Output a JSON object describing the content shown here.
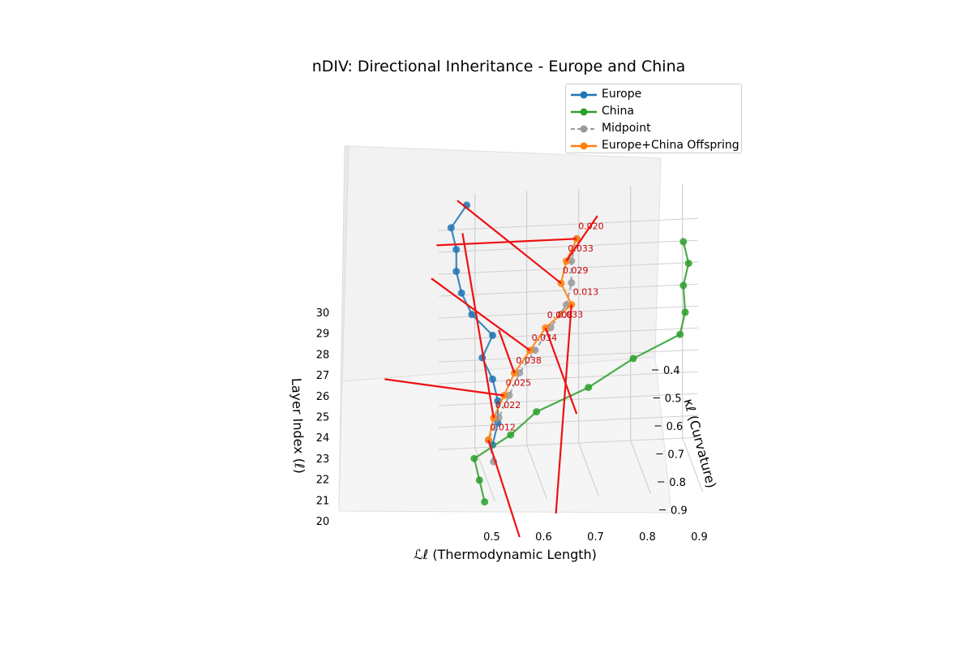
{
  "chart_data": {
    "type": "line",
    "title": "nDIV: Directional Inheritance - Europe and China",
    "xlabel": "ℒℓ (Thermodynamic Length)",
    "ylabel": "κℓ (Curvature)",
    "zlabel": "Layer Index (ℓ)",
    "xlim": [
      0.43,
      0.93
    ],
    "ylim": [
      0.35,
      0.9
    ],
    "zlim": [
      20,
      30
    ],
    "x_ticks": [
      "0.5",
      "0.6",
      "0.7",
      "0.8",
      "0.9"
    ],
    "y_ticks": [
      "0.4",
      "0.5",
      "0.6",
      "0.7",
      "0.8",
      "0.9"
    ],
    "z_ticks": [
      "20",
      "21",
      "22",
      "23",
      "24",
      "25",
      "26",
      "27",
      "28",
      "29",
      "30"
    ],
    "grid": true,
    "legend_position": "upper-right",
    "series": [
      {
        "name": "Europe",
        "color": "#1f77b4",
        "style": "solid",
        "points": [
          [
            0.52,
            0.55,
            21
          ],
          [
            0.53,
            0.55,
            22
          ],
          [
            0.53,
            0.55,
            23
          ],
          [
            0.52,
            0.55,
            24
          ],
          [
            0.5,
            0.55,
            25
          ],
          [
            0.52,
            0.55,
            26
          ],
          [
            0.48,
            0.55,
            27
          ],
          [
            0.46,
            0.55,
            28
          ],
          [
            0.45,
            0.55,
            29
          ],
          [
            0.45,
            0.55,
            30
          ],
          [
            0.44,
            0.55,
            31
          ],
          [
            0.47,
            0.55,
            32
          ]
        ]
      },
      {
        "name": "China",
        "color": "#2ca02c",
        "style": "solid",
        "points": [
          [
            0.48,
            0.9,
            20
          ],
          [
            0.47,
            0.9,
            21
          ],
          [
            0.46,
            0.9,
            22
          ],
          [
            0.53,
            0.9,
            23
          ],
          [
            0.58,
            0.9,
            24
          ],
          [
            0.68,
            0.9,
            25
          ],
          [
            0.77,
            0.85,
            26
          ],
          [
            0.86,
            0.85,
            27
          ],
          [
            0.87,
            0.85,
            28
          ],
          [
            0.87,
            0.8,
            29
          ],
          [
            0.88,
            0.8,
            30
          ],
          [
            0.87,
            0.8,
            31
          ]
        ]
      },
      {
        "name": "Midpoint",
        "color": "#999999",
        "style": "dashed",
        "points": [
          [
            0.51,
            0.72,
            21
          ],
          [
            0.5,
            0.72,
            22
          ],
          [
            0.52,
            0.72,
            23
          ],
          [
            0.54,
            0.72,
            24
          ],
          [
            0.56,
            0.72,
            25
          ],
          [
            0.59,
            0.72,
            26
          ],
          [
            0.62,
            0.72,
            27
          ],
          [
            0.65,
            0.72,
            28
          ],
          [
            0.66,
            0.72,
            29
          ],
          [
            0.66,
            0.72,
            30
          ],
          [
            0.67,
            0.72,
            31
          ]
        ]
      },
      {
        "name": "Europe+China Offspring",
        "color": "#ff7f0e",
        "style": "solid",
        "points": [
          [
            0.5,
            0.72,
            22
          ],
          [
            0.51,
            0.72,
            23
          ],
          [
            0.53,
            0.72,
            24
          ],
          [
            0.55,
            0.72,
            25
          ],
          [
            0.58,
            0.72,
            26
          ],
          [
            0.61,
            0.72,
            27
          ],
          [
            0.66,
            0.72,
            28
          ],
          [
            0.64,
            0.72,
            29
          ],
          [
            0.65,
            0.72,
            30
          ],
          [
            0.67,
            0.72,
            31
          ]
        ]
      }
    ],
    "direction_lines": [
      {
        "from": [
          0.5,
          0.72,
          22
        ],
        "to": [
          0.56,
          0.72,
          17.5
        ]
      },
      {
        "from": [
          0.51,
          0.72,
          23
        ],
        "to": [
          0.45,
          0.72,
          31.5
        ]
      },
      {
        "from": [
          0.53,
          0.72,
          24
        ],
        "to": [
          0.3,
          0.72,
          25
        ]
      },
      {
        "from": [
          0.55,
          0.72,
          25
        ],
        "to": [
          0.52,
          0.72,
          27
        ]
      },
      {
        "from": [
          0.58,
          0.72,
          26
        ],
        "to": [
          0.39,
          0.72,
          29.5
        ]
      },
      {
        "from": [
          0.61,
          0.72,
          27
        ],
        "to": [
          0.67,
          0.72,
          23
        ]
      },
      {
        "from": [
          0.66,
          0.72,
          28
        ],
        "to": [
          0.63,
          0.72,
          18.5
        ]
      },
      {
        "from": [
          0.64,
          0.72,
          29
        ],
        "to": [
          0.44,
          0.72,
          33
        ]
      },
      {
        "from": [
          0.65,
          0.72,
          30
        ],
        "to": [
          0.71,
          0.72,
          32
        ]
      },
      {
        "from": [
          0.67,
          0.72,
          31
        ],
        "to": [
          0.4,
          0.72,
          31
        ]
      }
    ],
    "annotations": [
      {
        "text": "0.012",
        "at": [
          0.5,
          0.72,
          22
        ]
      },
      {
        "text": "0.022",
        "at": [
          0.51,
          0.72,
          23
        ]
      },
      {
        "text": "0.025",
        "at": [
          0.53,
          0.72,
          24
        ]
      },
      {
        "text": "0.038",
        "at": [
          0.55,
          0.72,
          25
        ]
      },
      {
        "text": "0.034",
        "at": [
          0.58,
          0.72,
          26
        ]
      },
      {
        "text": "0.008",
        "at": [
          0.61,
          0.72,
          27
        ]
      },
      {
        "text": "0.033",
        "at": [
          0.63,
          0.72,
          27
        ]
      },
      {
        "text": "0.013",
        "at": [
          0.66,
          0.72,
          28
        ]
      },
      {
        "text": "0.029",
        "at": [
          0.64,
          0.72,
          29
        ]
      },
      {
        "text": "0.033",
        "at": [
          0.65,
          0.72,
          30
        ]
      },
      {
        "text": "0.020",
        "at": [
          0.67,
          0.72,
          31
        ]
      }
    ]
  }
}
